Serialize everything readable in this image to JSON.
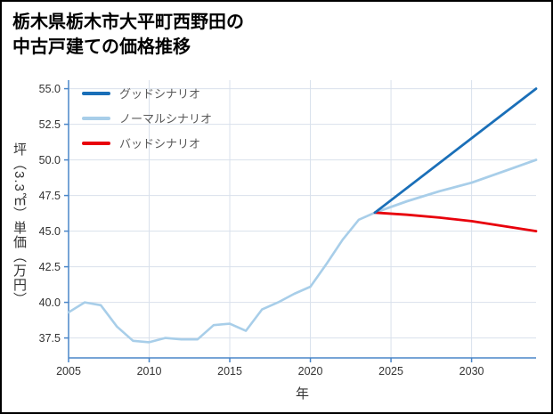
{
  "header": {
    "title_line1": "栃木県栃木市大平町西野田の",
    "title_line2": "中古戸建ての価格推移"
  },
  "chart_data": {
    "type": "line",
    "title": "栃木県栃木市大平町西野田の中古戸建ての価格推移",
    "xlabel": "年",
    "ylabel": "坪（3.3㎡）単価（万円）",
    "xlim": [
      2005,
      2034
    ],
    "ylim": [
      36.1,
      55.6
    ],
    "xticks": [
      2005,
      2010,
      2015,
      2020,
      2025,
      2030
    ],
    "yticks": [
      37.5,
      40.0,
      42.5,
      45.0,
      47.5,
      50.0,
      52.5,
      55.0
    ],
    "grid": true,
    "legend_position": "upper left",
    "colors": {
      "axis": "#4a86c8",
      "grid": "#d9e1ec",
      "tick_text": "#333333",
      "good": "#1a6fb8",
      "normal": "#a8cee9",
      "bad": "#e8000b"
    },
    "legend": [
      {
        "id": "good",
        "label": "グッドシナリオ",
        "color": "#1a6fb8"
      },
      {
        "id": "normal",
        "label": "ノーマルシナリオ",
        "color": "#a8cee9"
      },
      {
        "id": "bad",
        "label": "バッドシナリオ",
        "color": "#e8000b"
      }
    ],
    "series": [
      {
        "id": "history",
        "color": "#a8cee9",
        "width": 2.6,
        "x": [
          2005,
          2006,
          2007,
          2008,
          2009,
          2010,
          2011,
          2012,
          2013,
          2014,
          2015,
          2016,
          2017,
          2018,
          2019,
          2020,
          2021,
          2022,
          2023,
          2024
        ],
        "y": [
          39.3,
          40.0,
          39.8,
          38.3,
          37.3,
          37.2,
          37.5,
          37.4,
          37.4,
          38.4,
          38.5,
          38.0,
          39.5,
          40.0,
          40.6,
          41.1,
          42.7,
          44.4,
          45.8,
          46.3
        ]
      },
      {
        "id": "normal-scenario",
        "color": "#a8cee9",
        "width": 2.8,
        "x": [
          2024,
          2026,
          2028,
          2030,
          2032,
          2034
        ],
        "y": [
          46.3,
          47.1,
          47.8,
          48.4,
          49.2,
          50.0
        ]
      },
      {
        "id": "bad-scenario",
        "color": "#e8000b",
        "width": 2.8,
        "x": [
          2024,
          2026,
          2028,
          2030,
          2032,
          2034
        ],
        "y": [
          46.3,
          46.15,
          45.95,
          45.7,
          45.35,
          45.0
        ]
      },
      {
        "id": "good-scenario",
        "color": "#1a6fb8",
        "width": 2.8,
        "x": [
          2024,
          2034
        ],
        "y": [
          46.3,
          55.0
        ]
      }
    ]
  }
}
